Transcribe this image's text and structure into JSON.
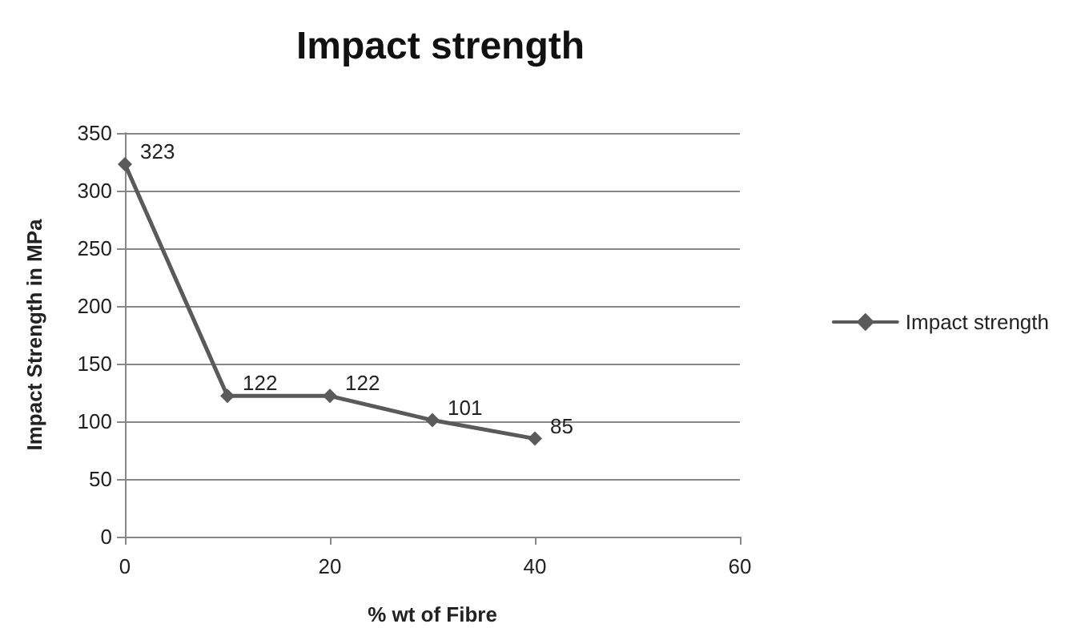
{
  "chart_data": {
    "type": "line",
    "title": "Impact strength",
    "xlabel": "% wt of Fibre",
    "ylabel": "Impact Strength in MPa",
    "x": [
      0,
      10,
      20,
      30,
      40
    ],
    "series": [
      {
        "name": "Impact strength",
        "color": "#5a5a5a",
        "values": [
          323,
          122,
          122,
          101,
          85
        ]
      }
    ],
    "xlim": [
      0,
      60
    ],
    "xticks": [
      0,
      20,
      40,
      60
    ],
    "ylim": [
      0,
      350
    ],
    "yticks": [
      0,
      50,
      100,
      150,
      200,
      250,
      300,
      350
    ],
    "grid": "y",
    "legend": "right",
    "marker": "diamond",
    "data_labels": true
  }
}
